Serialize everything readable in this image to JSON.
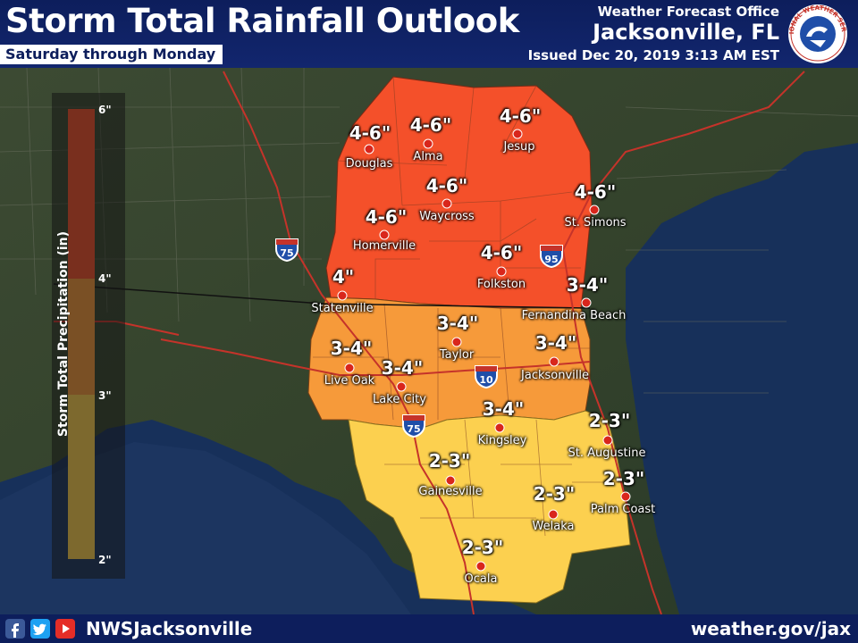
{
  "header": {
    "title": "Storm Total Rainfall Outlook",
    "subtitle": "Saturday through Monday",
    "office_line1": "Weather Forecast Office",
    "office_line2": "Jacksonville, FL",
    "issued": "Issued Dec 20, 2019 3:13 AM EST",
    "logo_text": "NATIONAL WEATHER SERVICE"
  },
  "legend": {
    "title": "Storm Total Precipitation (in)",
    "ticks": [
      "6\"",
      "4\"",
      "3\"",
      "2\""
    ],
    "colors": [
      "#f4502a",
      "#f69a3a",
      "#fcd04f"
    ]
  },
  "interstates": [
    "75",
    "95",
    "10",
    "75"
  ],
  "locations": [
    {
      "amount": "4-6\"",
      "city": "Douglas"
    },
    {
      "amount": "4-6\"",
      "city": "Alma"
    },
    {
      "amount": "4-6\"",
      "city": "Jesup"
    },
    {
      "amount": "4-6\"",
      "city": "Waycross"
    },
    {
      "amount": "4-6\"",
      "city": "Homerville"
    },
    {
      "amount": "4-6\"",
      "city": "St. Simons"
    },
    {
      "amount": "4-6\"",
      "city": "Folkston"
    },
    {
      "amount": "4\"",
      "city": "Statenville"
    },
    {
      "amount": "3-4\"",
      "city": "Fernandina Beach"
    },
    {
      "amount": "3-4\"",
      "city": "Taylor"
    },
    {
      "amount": "3-4\"",
      "city": "Jacksonville"
    },
    {
      "amount": "3-4\"",
      "city": "Live Oak"
    },
    {
      "amount": "3-4\"",
      "city": "Lake City"
    },
    {
      "amount": "3-4\"",
      "city": "Kingsley"
    },
    {
      "amount": "2-3\"",
      "city": "St. Augustine"
    },
    {
      "amount": "2-3\"",
      "city": "Gainesville"
    },
    {
      "amount": "2-3\"",
      "city": "Palm Coast"
    },
    {
      "amount": "2-3\"",
      "city": "Welaka"
    },
    {
      "amount": "2-3\"",
      "city": "Ocala"
    }
  ],
  "footer": {
    "handle": "NWSJacksonville",
    "website": "weather.gov/jax"
  },
  "colors": {
    "header_bg": "#0d1e5c",
    "band_high": "#f4502a",
    "band_mid": "#f69a3a",
    "band_low": "#fcd04f",
    "city_dot": "#d9261c"
  }
}
